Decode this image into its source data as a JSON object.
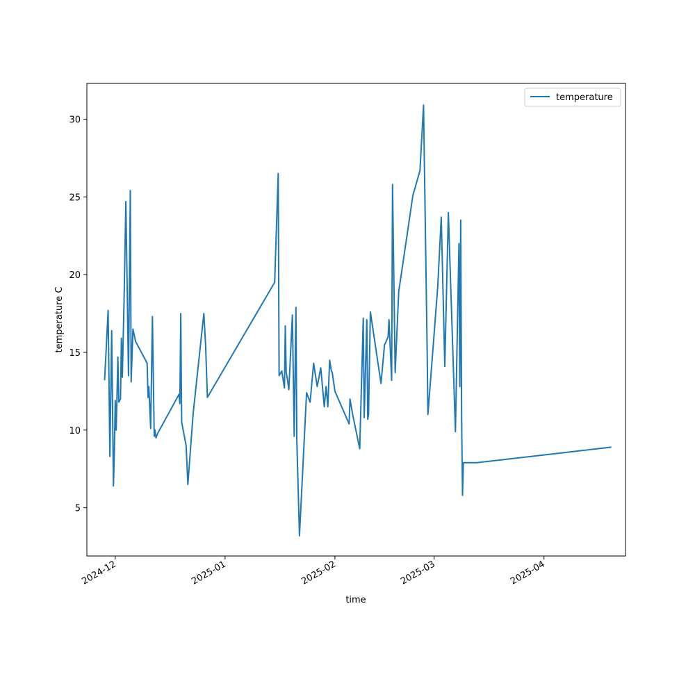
{
  "chart_data": {
    "type": "line",
    "title": "",
    "xlabel": "time",
    "ylabel": "temperature C",
    "xlim": [
      "2024-11-23",
      "2025-04-24"
    ],
    "ylim": [
      1.9,
      32.3
    ],
    "x_ticks": [
      "2024-12-01",
      "2025-01-01",
      "2025-02-01",
      "2025-03-01",
      "2025-04-01"
    ],
    "x_tick_labels": [
      "2024-12",
      "2025-01",
      "2025-02",
      "2025-03",
      "2025-04"
    ],
    "y_ticks": [
      5,
      10,
      15,
      20,
      25,
      30
    ],
    "y_tick_labels": [
      "5",
      "10",
      "15",
      "20",
      "25",
      "30"
    ],
    "grid": false,
    "legend_position": "top-right",
    "colors": {
      "series": "#1f77b4"
    },
    "series": [
      {
        "name": "temperature",
        "x": [
          "2024-11-28",
          "2024-11-29",
          "2024-11-29T12:00",
          "2024-11-30",
          "2024-11-30T12:00",
          "2024-11-30T18:00",
          "2024-12-01",
          "2024-12-01T06:00",
          "2024-12-01T12:00",
          "2024-12-01T18:00",
          "2024-12-02",
          "2024-12-02T12:00",
          "2024-12-02T18:00",
          "2024-12-03",
          "2024-12-03T12:00",
          "2024-12-04",
          "2024-12-04T18:00",
          "2024-12-05T06:00",
          "2024-12-05T12:00",
          "2024-12-06",
          "2024-12-06T18:00",
          "2024-12-10",
          "2024-12-10T06:00",
          "2024-12-10T12:00",
          "2024-12-11",
          "2024-12-11T12:00",
          "2024-12-12",
          "2024-12-12T06:00",
          "2024-12-12T12:00",
          "2024-12-13",
          "2024-12-19",
          "2024-12-19T06:00",
          "2024-12-19T12:00",
          "2024-12-19T18:00",
          "2024-12-21",
          "2024-12-21T12:00",
          "2024-12-23",
          "2024-12-26",
          "2024-12-26T12:00",
          "2024-12-27",
          "2025-01-15",
          "2025-01-16",
          "2025-01-16T06:00",
          "2025-01-16T12:00",
          "2025-01-17",
          "2025-01-17T18:00",
          "2025-01-18",
          "2025-01-18T06:00",
          "2025-01-18T12:00",
          "2025-01-19",
          "2025-01-20",
          "2025-01-20T12:00",
          "2025-01-21",
          "2025-01-21T06:00",
          "2025-01-22",
          "2025-01-24",
          "2025-01-25",
          "2025-01-26",
          "2025-01-27",
          "2025-01-28",
          "2025-01-29",
          "2025-01-29T12:00",
          "2025-01-30",
          "2025-01-30T12:00",
          "2025-01-31",
          "2025-01-31T06:00",
          "2025-02-01",
          "2025-02-05",
          "2025-02-05T06:00",
          "2025-02-06",
          "2025-02-08",
          "2025-02-09",
          "2025-02-09T06:00",
          "2025-02-10",
          "2025-02-10T06:00",
          "2025-02-10T12:00",
          "2025-02-11",
          "2025-02-14",
          "2025-02-15",
          "2025-02-15T06:00",
          "2025-02-16",
          "2025-02-16T06:00",
          "2025-02-17",
          "2025-02-17T06:00",
          "2025-02-18",
          "2025-02-19",
          "2025-02-23",
          "2025-02-25",
          "2025-02-26",
          "2025-02-27",
          "2025-02-27T06:00",
          "2025-03-02",
          "2025-03-03",
          "2025-03-04",
          "2025-03-05",
          "2025-03-07",
          "2025-03-08",
          "2025-03-08T06:00",
          "2025-03-08T12:00",
          "2025-03-08T18:00",
          "2025-03-09",
          "2025-03-09T06:00",
          "2025-03-10",
          "2025-03-10T06:00",
          "2025-03-11",
          "2025-03-11T06:00",
          "2025-03-12",
          "2025-03-13",
          "2025-04-20"
        ],
        "y": [
          13.2,
          17.7,
          8.3,
          16.4,
          6.4,
          8.5,
          11.9,
          10.0,
          12.1,
          14.7,
          11.8,
          12.0,
          15.9,
          13.4,
          18.3,
          24.7,
          13.5,
          25.4,
          13.1,
          16.5,
          15.7,
          14.3,
          12.1,
          12.8,
          10.1,
          17.3,
          9.6,
          10.0,
          9.5,
          9.8,
          12.3,
          11.7,
          17.5,
          10.5,
          9.0,
          6.5,
          11.1,
          17.5,
          15.5,
          12.1,
          19.5,
          26.5,
          13.5,
          13.6,
          13.8,
          12.7,
          16.7,
          13.7,
          13.4,
          12.6,
          17.4,
          9.6,
          17.9,
          9.3,
          3.2,
          12.4,
          11.8,
          14.3,
          12.8,
          14.0,
          11.5,
          12.8,
          11.5,
          14.5,
          13.8,
          13.7,
          12.5,
          10.4,
          12.0,
          11.0,
          8.8,
          17.2,
          10.8,
          17.1,
          10.7,
          11.0,
          17.6,
          13.0,
          15.5,
          15.6,
          16.0,
          17.1,
          13.2,
          25.8,
          13.7,
          18.9,
          25.1,
          26.7,
          30.9,
          15.5,
          11.0,
          19.2,
          23.7,
          14.1,
          24.0,
          9.9,
          22.0,
          12.8,
          23.5,
          10.8,
          5.8,
          7.9,
          7.9,
          7.9,
          7.9,
          7.9,
          7.9,
          7.9,
          8.9
        ]
      }
    ]
  }
}
